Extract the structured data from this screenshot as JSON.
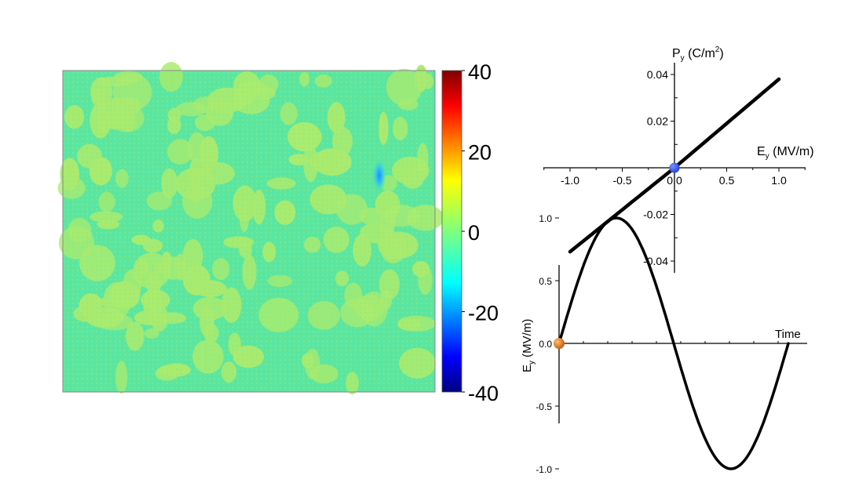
{
  "chart_data": [
    {
      "type": "heatmap",
      "colorbar": {
        "ticks": [
          "40",
          "20",
          "0",
          "-20",
          "-40"
        ],
        "range": [
          -40,
          40
        ],
        "colormap": "jet"
      },
      "field": {
        "background_value": 2,
        "patch_value": 6,
        "min_feature_value": -18
      },
      "colors": {
        "background": "#5AE6A0",
        "patch": "#AAEB6E",
        "dot": "#8EE882"
      }
    },
    {
      "type": "line",
      "xlabel_main": "E",
      "xlabel_sub": "y",
      "xlabel_unit": " (MV/m)",
      "ylabel_main": "P",
      "ylabel_sub": "y",
      "ylabel_unit": " (C/m",
      "ylabel_sup": "2",
      "ylabel_close": ")",
      "xlim": [
        -1.25,
        1.25
      ],
      "ylim": [
        -0.045,
        0.045
      ],
      "xticks": [
        "-1.0",
        "-0.5",
        "0.0",
        "0.5",
        "1.0"
      ],
      "xtick_values": [
        -1.0,
        -0.5,
        0.0,
        0.5,
        1.0
      ],
      "yticks": [
        "0.04",
        "0.02",
        "-0.02",
        "-0.04"
      ],
      "ytick_values": [
        0.04,
        0.02,
        -0.02,
        -0.04
      ],
      "series": [
        {
          "x": [
            -1.0,
            1.0
          ],
          "y": [
            -0.036,
            0.038
          ]
        }
      ],
      "marker": {
        "x": 0.0,
        "y": 0.0,
        "color": "#1F3FD8"
      }
    },
    {
      "type": "line",
      "xlabel": "Time",
      "ylabel_main": "E",
      "ylabel_sub": "y",
      "ylabel_unit": " (MV/m)",
      "ylim": [
        -1.25,
        1.25
      ],
      "yticks": [
        "1.0",
        "0.5",
        "0.0",
        "-0.5",
        "-1.0"
      ],
      "ytick_values": [
        1.0,
        0.5,
        0.0,
        -0.5,
        -1.0
      ],
      "series": [
        {
          "function": "sin",
          "amplitude": 1.0,
          "periods": 1
        }
      ],
      "marker": {
        "t": 0.0,
        "y": 0.0,
        "color": "#E07A20"
      }
    }
  ]
}
